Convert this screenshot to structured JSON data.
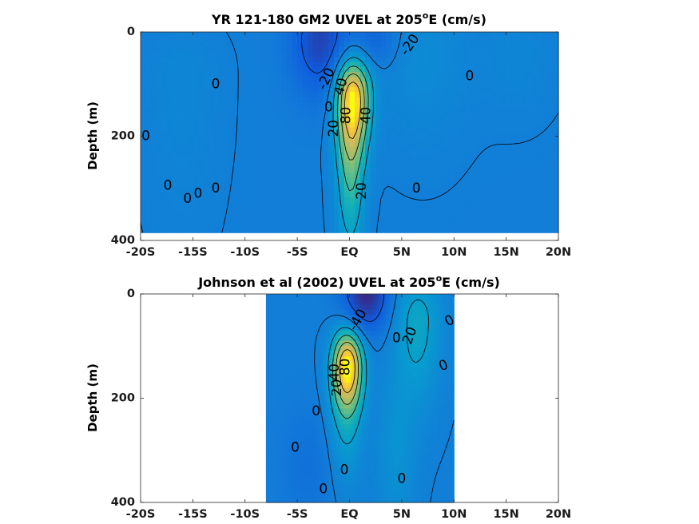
{
  "chart_data": [
    {
      "type": "heatmap",
      "title": "YR 121-180 GM2 UVEL at 205",
      "title_sup": "o",
      "title_tail": "E (cm/s)",
      "ylabel": "Depth (m)",
      "xlabel": "",
      "xlim": [
        -20,
        20
      ],
      "ylim": [
        0,
        400
      ],
      "y_reversed": true,
      "x_ticks": [
        -20,
        -15,
        -10,
        -5,
        0,
        5,
        10,
        15,
        20
      ],
      "x_tick_labels": [
        "-20S",
        "-15S",
        "-10S",
        "-5S",
        "EQ",
        "5N",
        "10N",
        "15N",
        "20N"
      ],
      "y_ticks": [
        0,
        200,
        400
      ],
      "y_tick_labels": [
        "0",
        "200",
        "400"
      ],
      "colormap": "parula",
      "color_range": [
        -40,
        100
      ],
      "data_extent": {
        "lat": [
          -20,
          20
        ],
        "depth": [
          0,
          385
        ]
      },
      "features": [
        {
          "name": "EUC core",
          "lat": 0.3,
          "depth": 125,
          "value": 95,
          "lat_sigma": 1.1,
          "depth_sigma_up": 50,
          "depth_sigma_down": 70
        },
        {
          "name": "EUC tail",
          "lat": 0.1,
          "depth": 260,
          "value": 40,
          "lat_sigma": 0.9,
          "depth_sigma_up": 80,
          "depth_sigma_down": 110
        },
        {
          "name": "SEC south",
          "lat": -2.8,
          "depth": 15,
          "value": -30,
          "lat_sigma": 2.0,
          "depth_sigma_up": 60,
          "depth_sigma_down": 75
        },
        {
          "name": "SEC north",
          "lat": 2.5,
          "depth": 10,
          "value": -15,
          "lat_sigma": 1.6,
          "depth_sigma_up": 60,
          "depth_sigma_down": 40
        },
        {
          "name": "NECC",
          "lat": 7.0,
          "depth": 40,
          "value": 8,
          "lat_sigma": 3.0,
          "depth_sigma_up": 60,
          "depth_sigma_down": 120
        },
        {
          "name": "west flank",
          "lat": -16,
          "depth": 80,
          "value": 5,
          "lat_sigma": 2.5,
          "depth_sigma_up": 60,
          "depth_sigma_down": 200
        },
        {
          "name": "north flank",
          "lat": 16,
          "depth": 40,
          "value": 5,
          "lat_sigma": 2.5,
          "depth_sigma_up": 40,
          "depth_sigma_down": 80
        }
      ],
      "contour_labels": [
        {
          "text": "-20",
          "lat": 5.8,
          "depth": 25,
          "angle": -55
        },
        {
          "text": "-20",
          "lat": -2.2,
          "depth": 90,
          "angle": -65
        },
        {
          "text": "40",
          "lat": -0.8,
          "depth": 105,
          "angle": -75
        },
        {
          "text": "0",
          "lat": -2.0,
          "depth": 145,
          "angle": 0
        },
        {
          "text": "80",
          "lat": -0.3,
          "depth": 160,
          "angle": -90
        },
        {
          "text": "40",
          "lat": 1.6,
          "depth": 160,
          "angle": -90
        },
        {
          "text": "20",
          "lat": -1.5,
          "depth": 185,
          "angle": -90
        },
        {
          "text": "0",
          "lat": 11.5,
          "depth": 85,
          "angle": 0
        },
        {
          "text": "0",
          "lat": -12.8,
          "depth": 100,
          "angle": 0
        },
        {
          "text": "0",
          "lat": -19.5,
          "depth": 200,
          "angle": 0
        },
        {
          "text": "0",
          "lat": -17.4,
          "depth": 295,
          "angle": 0
        },
        {
          "text": "0",
          "lat": -15.5,
          "depth": 320,
          "angle": 0
        },
        {
          "text": "0",
          "lat": -14.5,
          "depth": 310,
          "angle": 0
        },
        {
          "text": "0",
          "lat": -12.8,
          "depth": 300,
          "angle": 0
        },
        {
          "text": "20",
          "lat": 1.2,
          "depth": 305,
          "angle": -90
        },
        {
          "text": "0",
          "lat": 6.4,
          "depth": 300,
          "angle": 0
        }
      ]
    },
    {
      "type": "heatmap",
      "title": "Johnson et al (2002) UVEL at 205",
      "title_sup": "o",
      "title_tail": "E (cm/s)",
      "ylabel": "Depth (m)",
      "xlabel": "",
      "xlim": [
        -20,
        20
      ],
      "ylim": [
        0,
        400
      ],
      "y_reversed": true,
      "x_ticks": [
        -20,
        -15,
        -10,
        -5,
        0,
        5,
        10,
        15,
        20
      ],
      "x_tick_labels": [
        "-20S",
        "-15S",
        "-10S",
        "-5S",
        "EQ",
        "5N",
        "10N",
        "15N",
        "20N"
      ],
      "y_ticks": [
        0,
        200,
        400
      ],
      "y_tick_labels": [
        "0",
        "200",
        "400"
      ],
      "colormap": "parula",
      "color_range": [
        -40,
        100
      ],
      "data_extent": {
        "lat": [
          -8,
          10
        ],
        "depth": [
          0,
          400
        ]
      },
      "features": [
        {
          "name": "EUC core",
          "lat": -0.2,
          "depth": 135,
          "value": 95,
          "lat_sigma": 1.0,
          "depth_sigma_up": 45,
          "depth_sigma_down": 55
        },
        {
          "name": "EUC tail",
          "lat": -0.3,
          "depth": 220,
          "value": 25,
          "lat_sigma": 1.1,
          "depth_sigma_up": 60,
          "depth_sigma_down": 90
        },
        {
          "name": "SEC",
          "lat": 1.6,
          "depth": 0,
          "value": -40,
          "lat_sigma": 1.6,
          "depth_sigma_up": 50,
          "depth_sigma_down": 50
        },
        {
          "name": "NECC",
          "lat": 6.5,
          "depth": 50,
          "value": 25,
          "lat_sigma": 1.6,
          "depth_sigma_up": 60,
          "depth_sigma_down": 110
        },
        {
          "name": "deep north jet",
          "lat": 4.5,
          "depth": 300,
          "value": 12,
          "lat_sigma": 1.3,
          "depth_sigma_up": 100,
          "depth_sigma_down": 120
        },
        {
          "name": "deep south flow",
          "lat": -4.0,
          "depth": 330,
          "value": -8,
          "lat_sigma": 1.8,
          "depth_sigma_up": 80,
          "depth_sigma_down": 80
        }
      ],
      "contour_labels": [
        {
          "text": "-40",
          "lat": 0.8,
          "depth": 50,
          "angle": -60
        },
        {
          "text": "20",
          "lat": 5.8,
          "depth": 80,
          "angle": -70
        },
        {
          "text": "0",
          "lat": 4.5,
          "depth": 85,
          "angle": 0
        },
        {
          "text": "0",
          "lat": 9.6,
          "depth": 52,
          "angle": -30
        },
        {
          "text": "40",
          "lat": -1.4,
          "depth": 150,
          "angle": -90
        },
        {
          "text": "80",
          "lat": -0.4,
          "depth": 140,
          "angle": -90
        },
        {
          "text": "20",
          "lat": -1.2,
          "depth": 180,
          "angle": -90
        },
        {
          "text": "0",
          "lat": 9.0,
          "depth": 138,
          "angle": -20
        },
        {
          "text": "0",
          "lat": -3.2,
          "depth": 225,
          "angle": 0
        },
        {
          "text": "0",
          "lat": -5.2,
          "depth": 295,
          "angle": 0
        },
        {
          "text": "0",
          "lat": -0.5,
          "depth": 338,
          "angle": 0
        },
        {
          "text": "0",
          "lat": 5.0,
          "depth": 355,
          "angle": 0
        },
        {
          "text": "0",
          "lat": -2.5,
          "depth": 375,
          "angle": 0
        }
      ]
    }
  ]
}
